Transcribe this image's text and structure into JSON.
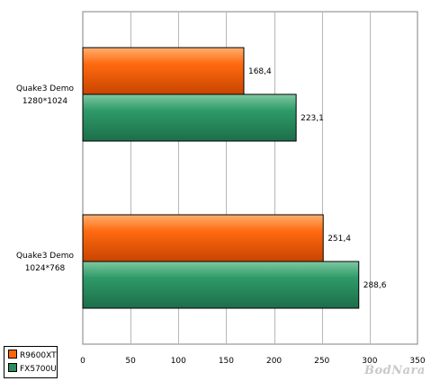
{
  "chart_data": {
    "type": "bar",
    "orientation": "horizontal",
    "categories": [
      "Quake3 Demo\n1280*1024",
      "Quake3 Demo\n1024*768"
    ],
    "series": [
      {
        "name": "R9600XT",
        "color": "#ff6600",
        "values": [
          168.4,
          251.4
        ],
        "labels": [
          "168,4",
          "251,4"
        ]
      },
      {
        "name": "FX5700U",
        "color": "#2e8b5f",
        "values": [
          223.1,
          288.6
        ],
        "labels": [
          "223,1",
          "288,6"
        ]
      }
    ],
    "xlim": [
      0,
      350
    ],
    "xticks": [
      0,
      50,
      100,
      150,
      200,
      250,
      300,
      350
    ],
    "xlabel": "",
    "ylabel": "",
    "grid": true,
    "legend_position": "bottom-left"
  },
  "watermark": "BodNara"
}
